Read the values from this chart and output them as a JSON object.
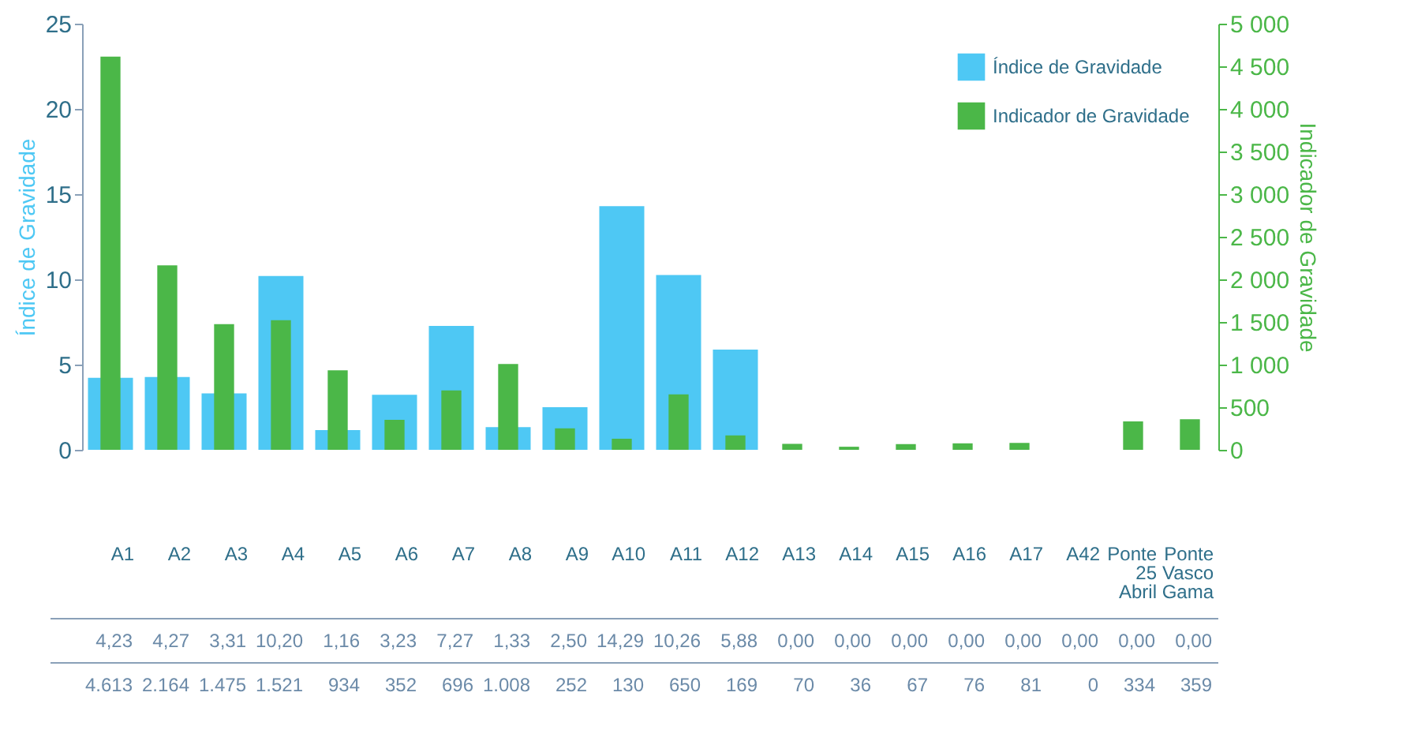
{
  "chart_data": {
    "type": "bar",
    "categories": [
      "A1",
      "A2",
      "A3",
      "A4",
      "A5",
      "A6",
      "A7",
      "A8",
      "A9",
      "A10",
      "A11",
      "A12",
      "A13",
      "A14",
      "A15",
      "A16",
      "A17",
      "A42",
      "Ponte 25 Abril",
      "Ponte Vasco Gama"
    ],
    "series": [
      {
        "name": "Índice de Gravidade",
        "color": "#4ec8f4",
        "values": [
          4.23,
          4.27,
          3.31,
          10.2,
          1.16,
          3.23,
          7.27,
          1.33,
          2.5,
          14.29,
          10.26,
          5.88,
          0,
          0,
          0,
          0,
          0,
          0,
          0,
          0
        ],
        "value_labels": [
          "4,23",
          "4,27",
          "3,31",
          "10,20",
          "1,16",
          "3,23",
          "7,27",
          "1,33",
          "2,50",
          "14,29",
          "10,26",
          "5,88",
          "0,00",
          "0,00",
          "0,00",
          "0,00",
          "0,00",
          "0,00",
          "0,00",
          "0,00"
        ]
      },
      {
        "name": "Indicador de Gravidade",
        "color": "#4bb748",
        "axis": "y2",
        "values": [
          4613,
          2164,
          1475,
          1521,
          934,
          352,
          696,
          1008,
          252,
          130,
          650,
          169,
          70,
          36,
          67,
          76,
          81,
          0,
          334,
          359
        ],
        "value_labels": [
          "4.613",
          "2.164",
          "1.475",
          "1.521",
          "934",
          "352",
          "696",
          "1.008",
          "252",
          "130",
          "650",
          "169",
          "70",
          "36",
          "67",
          "76",
          "81",
          "0",
          "334",
          "359"
        ]
      }
    ],
    "ylabel": "Índice de Gravidade",
    "y2label": "Indicador de Gravidade",
    "ylim": [
      0,
      25
    ],
    "yticks": [
      0,
      5,
      10,
      15,
      20,
      25
    ],
    "y2lim": [
      0,
      5000
    ],
    "y2ticks": [
      0,
      500,
      {
        "value": 1000,
        "label": "1 000"
      },
      {
        "value": 1500,
        "label": "1 500"
      },
      {
        "value": 2000,
        "label": "2 000"
      },
      {
        "value": 2500,
        "label": "2 500"
      },
      {
        "value": 3000,
        "label": "3 000"
      },
      {
        "value": 3500,
        "label": "3 500"
      },
      {
        "value": 4000,
        "label": "4 000"
      },
      {
        "value": 4500,
        "label": "4 500"
      },
      {
        "value": 5000,
        "label": "5 000"
      }
    ],
    "grid": false,
    "legend": "top right"
  }
}
